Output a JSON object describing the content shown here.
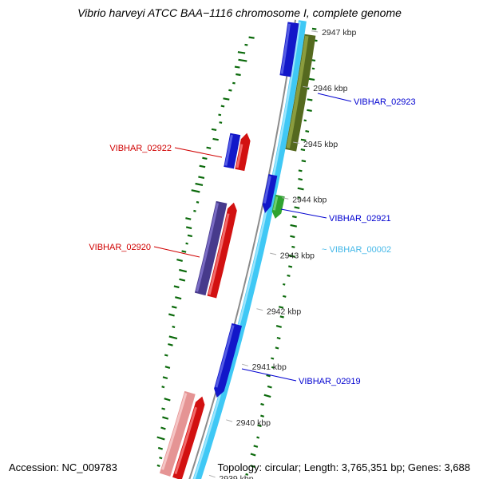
{
  "title": "Vibrio harveyi ATCC BAA−1116 chromosome I, complete genome",
  "status_bar": {
    "accession": "Accession: NC_009783",
    "summary": "Topology: circular; Length: 3,765,351 bp; Genes: 3,688"
  },
  "ticks": [
    "2947 kbp",
    "2946 kbp",
    "2945 kbp",
    "2944 kbp",
    "2943 kbp",
    "2942 kbp",
    "2941 kbp",
    "2940 kbp",
    "2939 kbp"
  ],
  "gene_labels": [
    {
      "text": "VIBHAR_02923",
      "color": "#0000D0"
    },
    {
      "text": "VIBHAR_02922",
      "color": "#D00000"
    },
    {
      "text": "VIBHAR_02921",
      "color": "#0000D0"
    },
    {
      "text": "~ VIBHAR_00002",
      "color": "#45B8E8"
    },
    {
      "text": "VIBHAR_02920",
      "color": "#D00000"
    },
    {
      "text": "VIBHAR_02919",
      "color": "#0000D0"
    }
  ],
  "colors": {
    "backbone": "#3FC8F5",
    "backbone_hl": "#9BE4FC",
    "ruler": "#8B8B8B",
    "tick_line": "#ADADAD",
    "tick_text": "#2B2B2B",
    "plot_dash": "#0A690A",
    "blue_gene": "#1217C9",
    "blue_gene_hl": "#5револ",
    "blue_gene_hl_fix": "#545CE4",
    "red_gene": "#D21111",
    "red_gene_hl": "#F26B6B",
    "olive_gene": "#55691F",
    "olive_gene_hl": "#8A9C3E",
    "green_gene": "#2FA32F",
    "green_gene_hl": "#6FCF6F",
    "purple_gene": "#473A8C",
    "purple_gene_hl": "#7A6CC4",
    "pink_gene": "#E59494",
    "pink_gene_hl": "#F5C5C5"
  }
}
